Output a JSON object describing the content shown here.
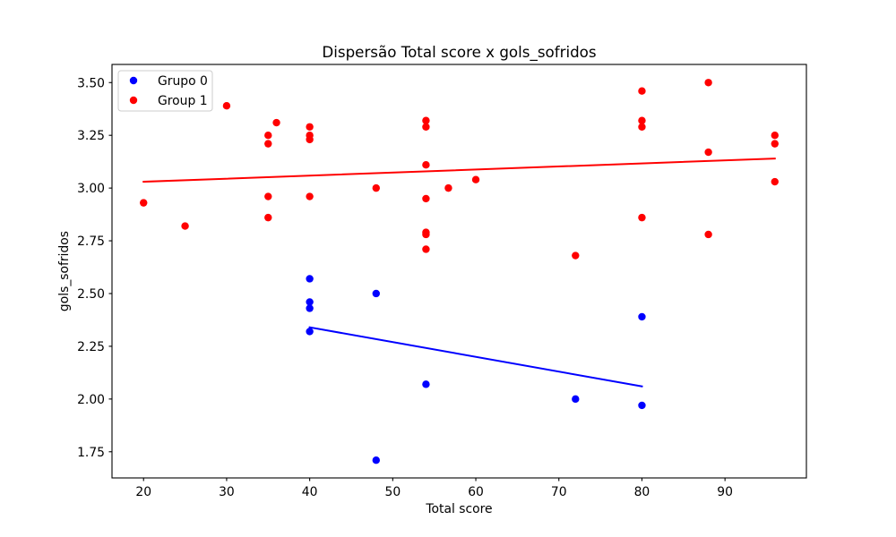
{
  "chart_data": {
    "type": "scatter",
    "title": "Dispersão Total score x gols_sofridos",
    "xlabel": "Total score",
    "ylabel": "gols_sofridos",
    "xlim": [
      16.2,
      99.8
    ],
    "ylim": [
      1.626,
      3.586
    ],
    "x_ticks": [
      20,
      30,
      40,
      50,
      60,
      70,
      80,
      90
    ],
    "x_tick_labels": [
      "20",
      "30",
      "40",
      "50",
      "60",
      "70",
      "80",
      "90"
    ],
    "y_ticks": [
      1.75,
      2.0,
      2.25,
      2.5,
      2.75,
      3.0,
      3.25,
      3.5
    ],
    "y_tick_labels": [
      "1.75",
      "2.00",
      "2.25",
      "2.50",
      "2.75",
      "3.00",
      "3.25",
      "3.50"
    ],
    "grid": false,
    "legend": {
      "placement": "upper left"
    },
    "series": [
      {
        "name": "Grupo 0",
        "color": "#0000ff",
        "marker": "circle",
        "points": [
          [
            40,
            2.57
          ],
          [
            40,
            2.46
          ],
          [
            40,
            2.43
          ],
          [
            40,
            2.32
          ],
          [
            48,
            2.5
          ],
          [
            48,
            1.71
          ],
          [
            54,
            2.07
          ],
          [
            72,
            2.0
          ],
          [
            80,
            2.39
          ],
          [
            80,
            1.97
          ]
        ],
        "trend_line": {
          "x": [
            40,
            80
          ],
          "y": [
            2.34,
            2.06
          ]
        }
      },
      {
        "name": "Group 1",
        "color": "#ff0000",
        "marker": "circle",
        "points": [
          [
            20,
            2.93
          ],
          [
            25,
            2.82
          ],
          [
            30,
            3.39
          ],
          [
            35,
            3.25
          ],
          [
            35,
            3.21
          ],
          [
            35,
            2.96
          ],
          [
            35,
            2.86
          ],
          [
            36,
            3.31
          ],
          [
            40,
            3.29
          ],
          [
            40,
            3.25
          ],
          [
            40,
            3.23
          ],
          [
            40,
            2.96
          ],
          [
            48,
            3.0
          ],
          [
            54,
            3.32
          ],
          [
            54,
            3.29
          ],
          [
            54,
            3.11
          ],
          [
            54,
            2.95
          ],
          [
            54,
            2.79
          ],
          [
            54,
            2.78
          ],
          [
            54,
            2.71
          ],
          [
            56.7,
            3.0
          ],
          [
            60,
            3.04
          ],
          [
            72,
            2.68
          ],
          [
            80,
            3.46
          ],
          [
            80,
            3.32
          ],
          [
            80,
            3.29
          ],
          [
            80,
            2.86
          ],
          [
            88,
            3.5
          ],
          [
            88,
            3.17
          ],
          [
            88,
            2.78
          ],
          [
            96,
            3.25
          ],
          [
            96,
            3.21
          ],
          [
            96,
            3.03
          ]
        ],
        "trend_line": {
          "x": [
            20,
            96
          ],
          "y": [
            3.03,
            3.14
          ]
        }
      }
    ]
  }
}
